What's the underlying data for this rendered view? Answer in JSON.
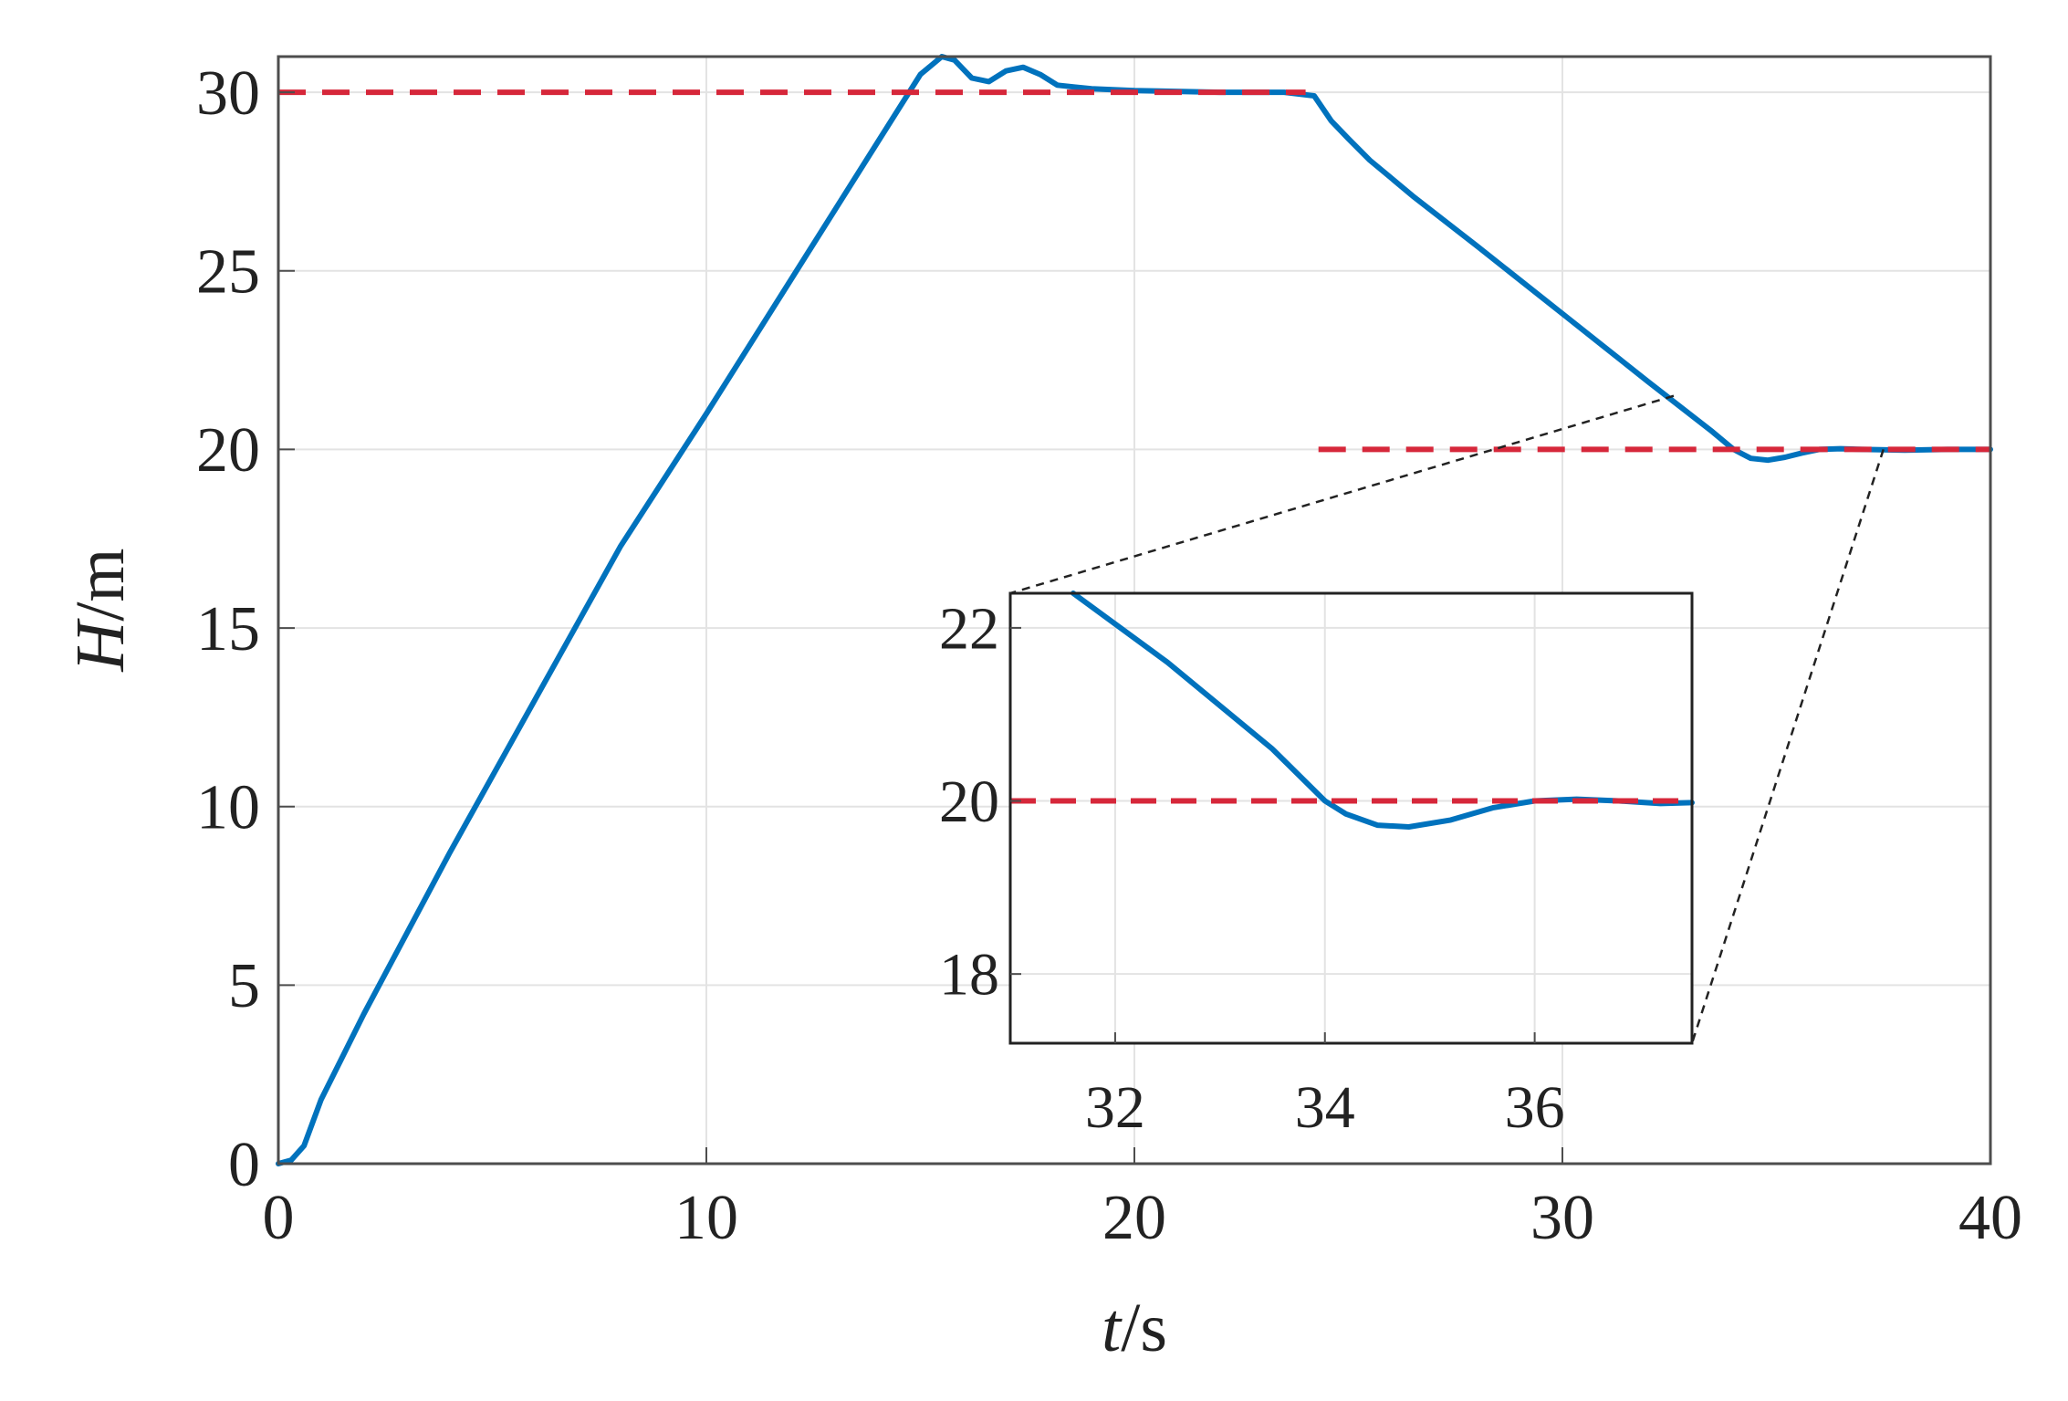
{
  "chart_data": [
    {
      "type": "line",
      "xlabel_var": "t",
      "xlabel_unit": "s",
      "ylabel_var": "H",
      "ylabel_unit": "m",
      "xlim": [
        0,
        40
      ],
      "ylim": [
        0,
        31
      ],
      "grid": true,
      "xticks": [
        "0",
        "10",
        "20",
        "30",
        "40"
      ],
      "yticks": [
        "0",
        "5",
        "10",
        "15",
        "20",
        "25",
        "30"
      ],
      "series": [
        {
          "color": "#0072BD",
          "style": "solid",
          "x": [
            0,
            0.3,
            0.6,
            1.0,
            1.5,
            2,
            4,
            6,
            8,
            10,
            12,
            14,
            15,
            15.5,
            15.8,
            16.2,
            16.6,
            17.0,
            17.4,
            17.8,
            18.2,
            18.6,
            19,
            20,
            22,
            23.5,
            24.2,
            24.6,
            25,
            25.5,
            26,
            26.5,
            28,
            30,
            32,
            33.5,
            34.0,
            34.4,
            34.8,
            35.2,
            35.6,
            36,
            36.5,
            37,
            38,
            39,
            40
          ],
          "y": [
            0,
            0.1,
            0.5,
            1.8,
            3.0,
            4.2,
            8.7,
            13.0,
            17.3,
            21.0,
            24.8,
            28.6,
            30.5,
            31.0,
            30.9,
            30.4,
            30.3,
            30.6,
            30.7,
            30.5,
            30.2,
            30.15,
            30.1,
            30.05,
            30.0,
            30.0,
            29.9,
            29.2,
            28.7,
            28.1,
            27.6,
            27.1,
            25.7,
            23.8,
            21.9,
            20.5,
            20.0,
            19.75,
            19.7,
            19.78,
            19.9,
            20.0,
            20.02,
            20.0,
            19.98,
            20.0,
            20.0
          ]
        },
        {
          "color": "#D6273A",
          "style": "dashed",
          "x": [
            0,
            24
          ],
          "y": [
            30,
            30
          ]
        },
        {
          "color": "#D6273A",
          "style": "dashed",
          "x": [
            24.3,
            40
          ],
          "y": [
            20,
            20
          ]
        }
      ]
    },
    {
      "type": "line",
      "inset": true,
      "xlim": [
        31,
        37.5
      ],
      "ylim": [
        17.2,
        22.4
      ],
      "grid": true,
      "xticks": [
        "32",
        "34",
        "36"
      ],
      "yticks": [
        "18",
        "20",
        "22"
      ],
      "series": [
        {
          "color": "#0072BD",
          "style": "solid",
          "x": [
            31.6,
            32.5,
            33.5,
            34.0,
            34.2,
            34.5,
            34.8,
            35.2,
            35.6,
            36.0,
            36.4,
            36.8,
            37.2,
            37.5
          ],
          "y": [
            22.4,
            21.6,
            20.6,
            20.0,
            19.85,
            19.72,
            19.7,
            19.78,
            19.92,
            20.0,
            20.02,
            20.0,
            19.97,
            19.98
          ]
        },
        {
          "color": "#D6273A",
          "style": "dashed",
          "x": [
            31,
            37.5
          ],
          "y": [
            20,
            20
          ]
        }
      ]
    }
  ]
}
